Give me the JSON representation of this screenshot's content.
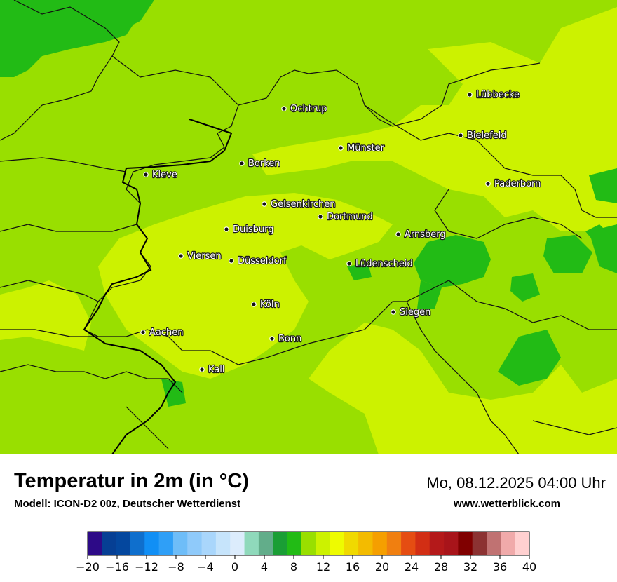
{
  "map": {
    "cities": [
      {
        "name": "Lübbecke"
      },
      {
        "name": "Ochtrup"
      },
      {
        "name": "Bielefeld"
      },
      {
        "name": "Münster"
      },
      {
        "name": "Borken"
      },
      {
        "name": "Kleve"
      },
      {
        "name": "Paderborn"
      },
      {
        "name": "Gelsenkirchen"
      },
      {
        "name": "Dortmund"
      },
      {
        "name": "Duisburg"
      },
      {
        "name": "Arnsberg"
      },
      {
        "name": "Viersen"
      },
      {
        "name": "Düsseldorf"
      },
      {
        "name": "Lüdenscheid"
      },
      {
        "name": "Köln"
      },
      {
        "name": "Siegen"
      },
      {
        "name": "Aachen"
      },
      {
        "name": "Bonn"
      },
      {
        "name": "Kall"
      }
    ],
    "colors": {
      "base": "#99df00",
      "warm": "#ccf200",
      "cool": "#22bb15",
      "border": "#111111"
    }
  },
  "header": {
    "title": "Temperatur in 2m (in °C)",
    "subtitle": "Modell: ICON-D2 00z, Deutscher Wetterdienst",
    "datetime": "Mo, 08.12.2025 04:00 Uhr",
    "website": "www.wetterblick.com"
  },
  "legend": {
    "unit": "°C",
    "ticks": [
      "−20",
      "−16",
      "−12",
      "−8",
      "−4",
      "0",
      "4",
      "8",
      "12",
      "16",
      "20",
      "24",
      "28",
      "32",
      "36",
      "40"
    ],
    "colors": [
      "#2d0a87",
      "#063f94",
      "#04479e",
      "#0f6fcd",
      "#118ff5",
      "#2f9ff7",
      "#6ebdf8",
      "#8fcafa",
      "#a9d6fb",
      "#c6e4fb",
      "#dcecfc",
      "#8fd9bb",
      "#62ad8a",
      "#1a9e35",
      "#22bb15",
      "#99df00",
      "#ccf200",
      "#eefb00",
      "#f0d900",
      "#f3bb00",
      "#f59f00",
      "#f07f10",
      "#e54d12",
      "#d22e14",
      "#b4191a",
      "#a8141a",
      "#800000",
      "#8c3232",
      "#c07272",
      "#f0aaaa",
      "#ffd0d0"
    ]
  }
}
